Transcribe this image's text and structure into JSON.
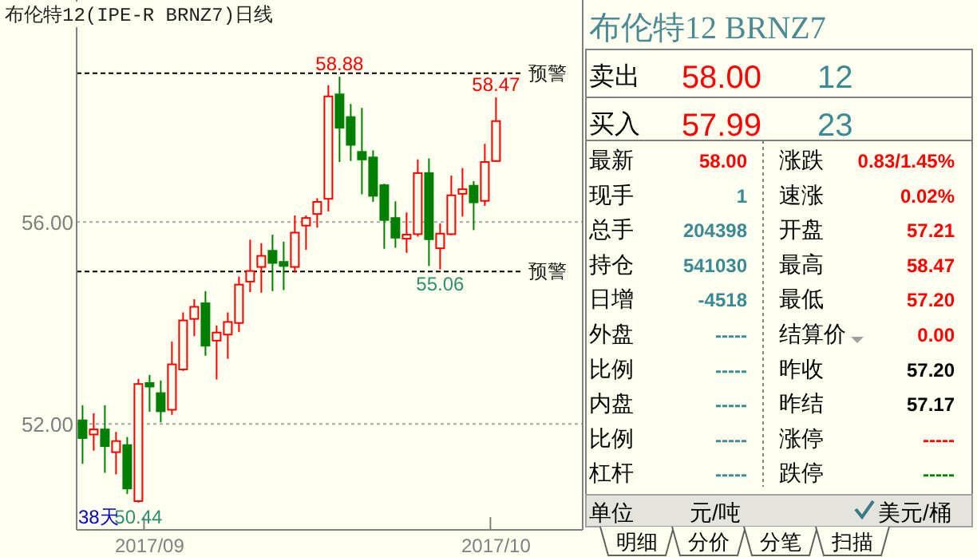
{
  "chart_data": [
    {
      "type": "candlestick",
      "title": "布伦特12(IPE-R BRNZ7)日线",
      "categories": [
        null,
        null,
        null,
        null,
        null,
        null,
        "2017/09",
        null,
        null,
        null,
        null,
        null,
        null,
        null,
        null,
        null,
        null,
        null,
        null,
        null,
        null,
        null,
        null,
        null,
        null,
        null,
        null,
        null,
        null,
        null,
        null,
        null,
        null,
        null,
        null,
        null,
        null,
        "2017/10"
      ],
      "ohlc": [
        [
          52.07,
          52.37,
          51.21,
          51.72
        ],
        [
          51.79,
          52.21,
          51.47,
          51.89
        ],
        [
          51.89,
          52.37,
          51.03,
          51.56
        ],
        [
          51.44,
          51.84,
          51.0,
          51.66
        ],
        [
          51.58,
          51.74,
          50.61,
          50.72
        ],
        [
          50.47,
          52.89,
          50.44,
          52.79
        ],
        [
          52.81,
          52.97,
          52.24,
          52.74
        ],
        [
          52.61,
          52.86,
          52.03,
          52.25
        ],
        [
          52.28,
          53.63,
          52.18,
          53.18
        ],
        [
          53.08,
          54.21,
          53.05,
          54.05
        ],
        [
          54.08,
          54.47,
          53.74,
          54.32
        ],
        [
          54.39,
          54.63,
          53.35,
          53.55
        ],
        [
          53.65,
          53.95,
          52.88,
          53.81
        ],
        [
          53.77,
          54.21,
          53.29,
          54.02
        ],
        [
          54.0,
          54.92,
          53.82,
          54.76
        ],
        [
          54.82,
          55.65,
          54.61,
          55.03
        ],
        [
          55.11,
          55.58,
          54.6,
          55.33
        ],
        [
          55.43,
          55.75,
          54.63,
          55.19
        ],
        [
          55.21,
          55.61,
          54.65,
          55.13
        ],
        [
          55.11,
          56.13,
          55.0,
          55.79
        ],
        [
          55.93,
          56.13,
          55.45,
          56.08
        ],
        [
          56.16,
          56.47,
          55.89,
          56.4
        ],
        [
          56.46,
          58.71,
          56.21,
          58.49
        ],
        [
          58.53,
          58.88,
          57.19,
          57.87
        ],
        [
          58.08,
          58.34,
          57.21,
          57.53
        ],
        [
          57.39,
          58.26,
          56.55,
          57.24
        ],
        [
          57.28,
          57.42,
          56.4,
          56.52
        ],
        [
          56.73,
          56.76,
          55.47,
          56.04
        ],
        [
          56.08,
          56.41,
          55.49,
          55.69
        ],
        [
          55.67,
          56.19,
          55.39,
          55.75
        ],
        [
          55.76,
          57.24,
          55.71,
          56.97
        ],
        [
          56.97,
          57.26,
          55.13,
          55.66
        ],
        [
          55.48,
          55.97,
          55.06,
          55.77
        ],
        [
          55.76,
          56.92,
          55.74,
          56.53
        ],
        [
          56.56,
          57.07,
          56.11,
          56.65
        ],
        [
          56.72,
          56.81,
          55.84,
          56.39
        ],
        [
          56.42,
          57.55,
          56.32,
          57.19
        ],
        [
          57.21,
          58.47,
          57.2,
          58.0
        ]
      ],
      "colors": [
        "#008000",
        "#ff0000",
        "#008000",
        "#ff0000",
        "#008000",
        "#ff0000",
        "#008000",
        "#008000",
        "#ff0000",
        "#ff0000",
        "#ff0000",
        "#008000",
        "#ff0000",
        "#ff0000",
        "#ff0000",
        "#ff0000",
        "#ff0000",
        "#008000",
        "#008000",
        "#ff0000",
        "#ff0000",
        "#ff0000",
        "#ff0000",
        "#008000",
        "#008000",
        "#008000",
        "#008000",
        "#008000",
        "#008000",
        "#ff0000",
        "#ff0000",
        "#008000",
        "#ff0000",
        "#ff0000",
        "#ff0000",
        "#008000",
        "#ff0000",
        "#ff0000"
      ],
      "ylim": [
        49.9,
        60.4
      ],
      "yticks": [
        {
          "value": 56,
          "label": "56.00"
        },
        {
          "value": 52,
          "label": "52.00"
        }
      ],
      "grid": "y",
      "ref_lines": [
        {
          "axis": "y",
          "value": 58.95,
          "label": "预警",
          "color": "#000000",
          "line_style": "dashed"
        },
        {
          "axis": "y",
          "value": 55.02,
          "label": "预警",
          "color": "#000000",
          "line_style": "dashed"
        }
      ],
      "annotations": [
        {
          "text": "58.88",
          "y": 58.88
        },
        {
          "text": "58.47",
          "y": 58.47
        },
        {
          "text": "55.06",
          "y": 55.06
        },
        {
          "text": "50.44",
          "y": 50.44
        },
        "38天"
      ]
    },
    {
      "type": "other",
      "title": "布伦特12  BRNZ7",
      "annotations": [
        "卖出",
        "58.00",
        "12",
        "买入",
        "57.99",
        "23",
        "最新",
        "58.00",
        "涨跌",
        "0.83/1.45%",
        "现手",
        "1",
        "速涨",
        "0.02%",
        "总手",
        "204398",
        "开盘",
        "57.21",
        "持仓",
        "541030",
        "最高",
        "58.47",
        "日增",
        "-4518",
        "最低",
        "57.20",
        "外盘",
        "-----",
        "结算价",
        "0.00",
        "比例",
        "-----",
        "昨收",
        "57.20",
        "内盘",
        "-----",
        "昨结",
        "57.17",
        "比例",
        "-----",
        "涨停",
        "-----",
        "杠杆",
        "-----",
        "跌停",
        "-----",
        "单位",
        "元/吨",
        "美元/桶",
        "明细",
        "分价",
        "分笔",
        "扫描"
      ]
    }
  ]
}
